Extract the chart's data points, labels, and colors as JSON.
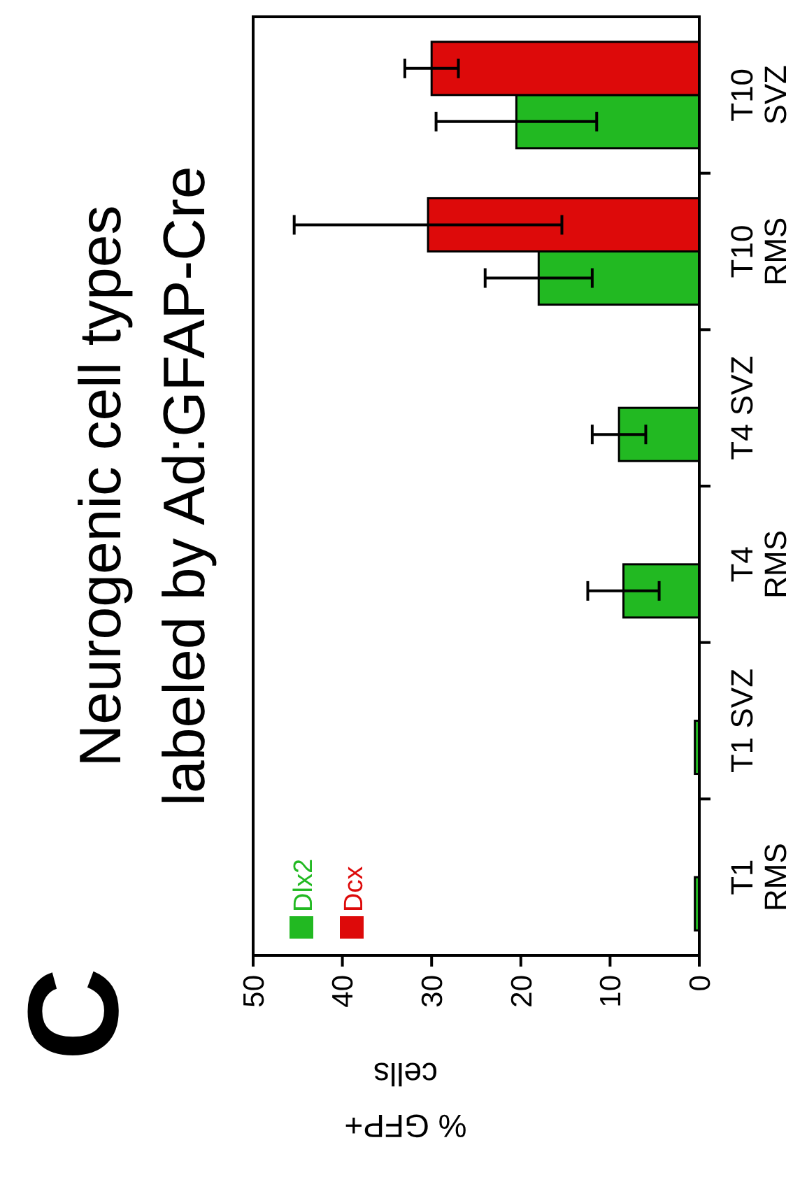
{
  "chart_data": {
    "type": "bar",
    "orientation": "horizontal",
    "title": "Neurogenic cell types\nlabeled by Ad:GFAP-Cre",
    "xlabel": "% GFP+\ncells",
    "annotations": [
      "C"
    ],
    "categories": [
      "T10\nSVZ",
      "T10\nRMS",
      "T4 SVZ",
      "T4\nRMS",
      "T1 SVZ",
      "T1\nRMS"
    ],
    "series": [
      {
        "name": "Dlx2",
        "color": "#22b922",
        "values": [
          20.5,
          18,
          9,
          8.5,
          0.5,
          0.5
        ],
        "errors": [
          9,
          6,
          3,
          4,
          null,
          null
        ]
      },
      {
        "name": "Dcx",
        "color": "#dd0a0a",
        "values": [
          30,
          30.4,
          null,
          null,
          null,
          null
        ],
        "errors": [
          3,
          15,
          null,
          null,
          null,
          null
        ]
      }
    ],
    "xlim": [
      50,
      0
    ],
    "xticks": [
      50,
      40,
      30,
      20,
      10,
      0
    ],
    "legend": "bottom left"
  }
}
